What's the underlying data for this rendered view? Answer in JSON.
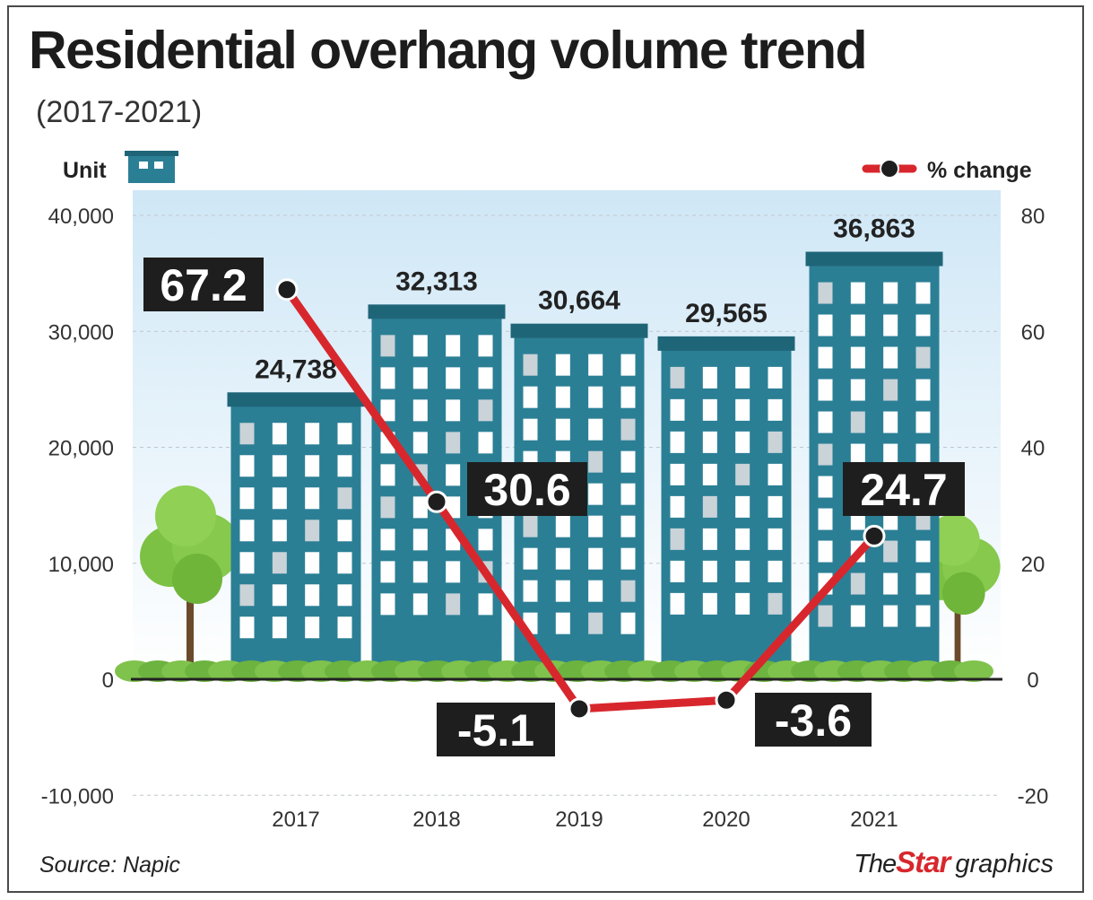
{
  "header": {
    "title": "Residential overhang volume trend",
    "subtitle": "(2017-2021)"
  },
  "footer": {
    "source": "Source: Napic",
    "credit_the": "The",
    "credit_star": "Star",
    "credit_rest": "graphics"
  },
  "colors": {
    "building": "#2b7f95",
    "building_dark": "#1f6578",
    "line": "#d7272d",
    "label_bg": "#1e1e1e",
    "sky": "#d6ebf7",
    "grass": "#6cb33f",
    "tree": "#7cc143"
  },
  "chart_data": {
    "type": "bar+line",
    "title": "Residential overhang volume trend",
    "subtitle": "(2017-2021)",
    "categories": [
      "2017",
      "2018",
      "2019",
      "2020",
      "2021"
    ],
    "left_axis": {
      "label": "Unit",
      "range": [
        -10000,
        40000
      ],
      "ticks": [
        -10000,
        0,
        10000,
        20000,
        30000,
        40000
      ],
      "tick_labels": [
        "-10,000",
        "0",
        "10,000",
        "20,000",
        "30,000",
        "40,000"
      ]
    },
    "right_axis": {
      "label": "% change",
      "range": [
        -20,
        80
      ],
      "ticks": [
        -20,
        0,
        20,
        40,
        60,
        80
      ],
      "tick_labels": [
        "-20",
        "0",
        "20",
        "40",
        "60",
        "80"
      ]
    },
    "series": [
      {
        "name": "Unit",
        "type": "bar",
        "axis": "left",
        "values": [
          24738,
          32313,
          30664,
          29565,
          36863
        ],
        "labels": [
          "24,738",
          "32,313",
          "30,664",
          "29,565",
          "36,863"
        ]
      },
      {
        "name": "% change",
        "type": "line",
        "axis": "right",
        "values": [
          67.2,
          30.6,
          -5.1,
          -3.6,
          24.7
        ],
        "labels": [
          "67.2",
          "30.6",
          "-5.1",
          "-3.6",
          "24.7"
        ]
      }
    ],
    "legend": [
      "Unit",
      "% change"
    ],
    "legend_position": "top"
  }
}
